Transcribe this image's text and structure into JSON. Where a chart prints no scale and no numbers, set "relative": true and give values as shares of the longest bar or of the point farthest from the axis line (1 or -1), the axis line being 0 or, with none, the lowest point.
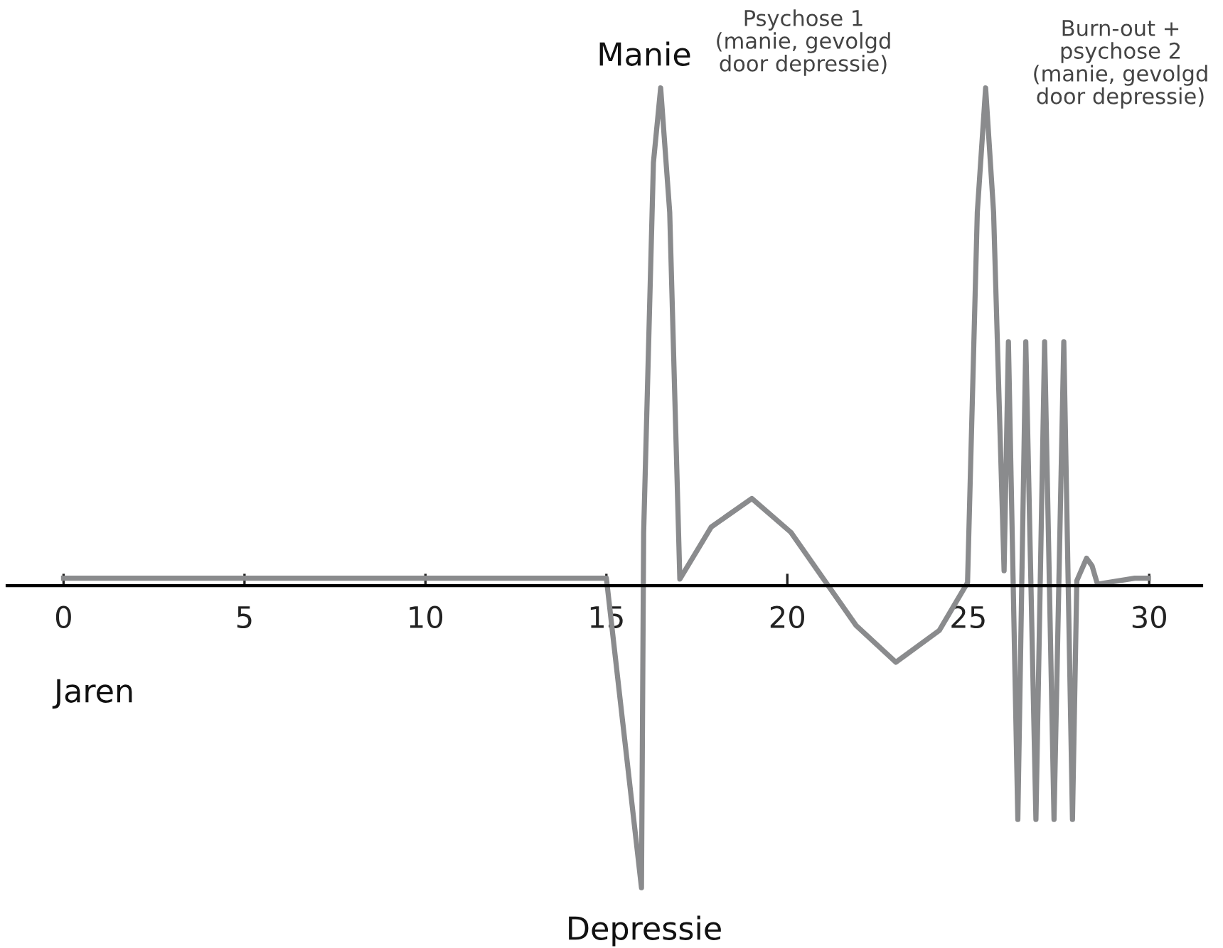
{
  "chart_data": {
    "type": "line",
    "relative": true,
    "xlabel": "Jaren",
    "xlim": [
      -1.56,
      31.45
    ],
    "xticks": [
      0,
      5,
      10,
      15,
      20,
      25,
      30
    ],
    "grid": false,
    "legend": false,
    "marker": "none",
    "line_style": "solid",
    "annotations": [
      "Manie",
      "Depressie",
      "Psychose 1\n(manie, gevolgd\ndoor depressie)",
      "Burn-out +\npsychose 2\n(manie, gevolgd\ndoor depressie)"
    ],
    "series": [
      {
        "color": "#8a8b8d",
        "x": [
          0,
          15.0,
          15.97,
          16.03,
          16.3,
          16.5,
          16.75,
          17.03,
          17.9,
          19.02,
          20.1,
          21.13,
          21.9,
          23.0,
          24.2,
          24.98,
          25.25,
          25.48,
          25.7,
          25.99,
          26.11,
          26.37,
          26.59,
          26.87,
          27.11,
          27.37,
          27.64,
          27.88,
          28.0,
          28.27,
          28.42,
          28.57,
          29.6,
          29.98
        ],
        "values": [
          0.015,
          0.015,
          -0.607,
          0.107,
          0.85,
          1.0,
          0.75,
          0.013,
          0.118,
          0.175,
          0.107,
          0.0,
          -0.08,
          -0.154,
          -0.09,
          0.006,
          0.75,
          1.0,
          0.75,
          0.03,
          0.49,
          -0.47,
          0.49,
          -0.47,
          0.49,
          -0.47,
          0.49,
          -0.47,
          0.01,
          0.055,
          0.04,
          0.003,
          0.015,
          0.015
        ]
      }
    ]
  }
}
